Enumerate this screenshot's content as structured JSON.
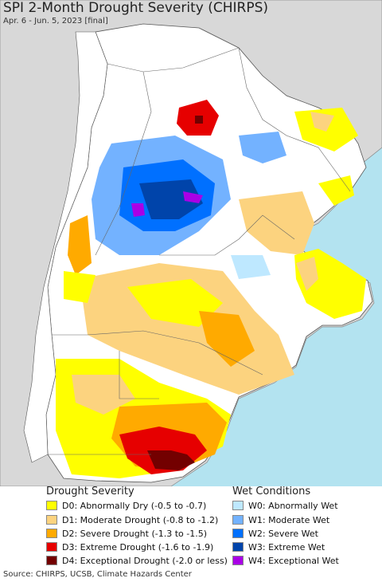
{
  "title": "SPI 2-Month Drought Severity (CHIRPS)",
  "subtitle": "Apr. 6 - Jun. 5, 2023 [final]",
  "colors": {
    "ocean": "#b3e3f0",
    "land_other": "#d8d8d8",
    "land": "#ffffff",
    "border": "#666666"
  },
  "legend": {
    "drought": {
      "heading": "Drought Severity",
      "items": [
        {
          "label": "D0: Abnormally Dry (-0.5 to -0.7)",
          "color": "#ffff00"
        },
        {
          "label": "D1: Moderate Drought (-0.8 to -1.2)",
          "color": "#fcd37f"
        },
        {
          "label": "D2: Severe Drought (-1.3 to -1.5)",
          "color": "#ffaa00"
        },
        {
          "label": "D3: Extreme Drought (-1.6 to -1.9)",
          "color": "#e60000"
        },
        {
          "label": "D4: Exceptional Drought (-2.0 or less)",
          "color": "#730000"
        }
      ]
    },
    "wet": {
      "heading": "Wet Conditions",
      "items": [
        {
          "label": "W0: Abnormally Wet",
          "color": "#bee8ff"
        },
        {
          "label": "W1: Moderate Wet",
          "color": "#73b2ff"
        },
        {
          "label": "W2: Severe Wet",
          "color": "#0070ff"
        },
        {
          "label": "W3: Extreme Wet",
          "color": "#0044aa"
        },
        {
          "label": "W4: Exceptional Wet",
          "color": "#a900e6"
        }
      ]
    }
  },
  "footer": "Source: CHIRPS, UCSB, Climate Hazards Center"
}
